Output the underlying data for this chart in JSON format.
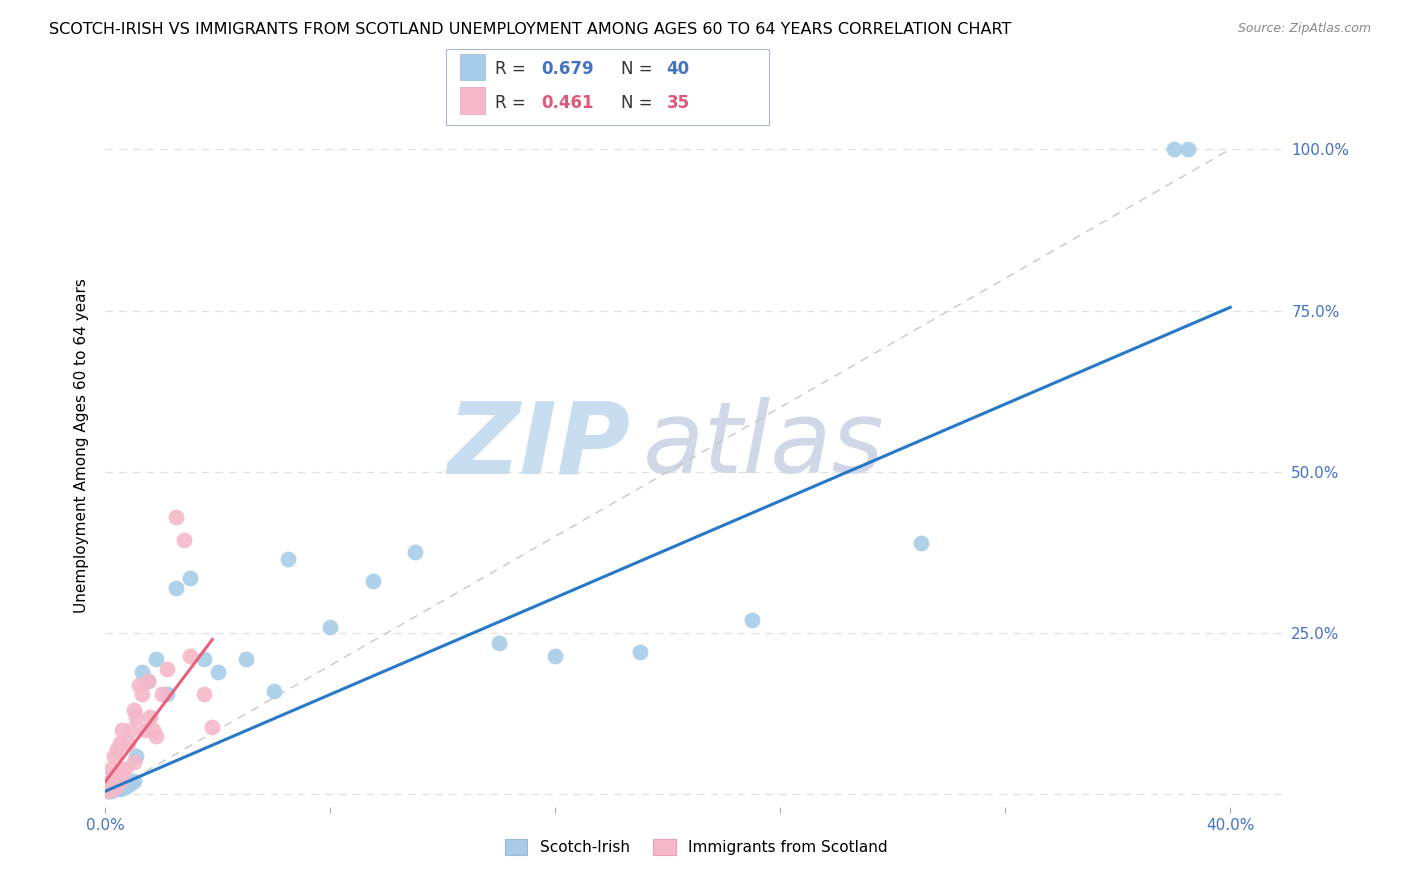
{
  "title": "SCOTCH-IRISH VS IMMIGRANTS FROM SCOTLAND UNEMPLOYMENT AMONG AGES 60 TO 64 YEARS CORRELATION CHART",
  "source": "Source: ZipAtlas.com",
  "ylabel": "Unemployment Among Ages 60 to 64 years",
  "xlim": [
    0.0,
    0.42
  ],
  "ylim": [
    -0.02,
    1.1
  ],
  "ytick_positions": [
    0.0,
    0.25,
    0.5,
    0.75,
    1.0
  ],
  "ytick_labels": [
    "",
    "25.0%",
    "50.0%",
    "75.0%",
    "100.0%"
  ],
  "blue_color": "#a8cce8",
  "pink_color": "#f5b8c8",
  "blue_line_color": "#2878c8",
  "pink_line_color": "#e8607a",
  "ref_line_color": "#c8c8c8",
  "watermark_zip_color": "#c8ddf0",
  "watermark_atlas_color": "#d0d8e8",
  "grid_color": "#e0e0e0",
  "background_color": "#ffffff",
  "title_fontsize": 11.5,
  "axis_label_fontsize": 11,
  "tick_fontsize": 11,
  "scotch_irish_x": [
    0.001,
    0.001,
    0.001,
    0.002,
    0.002,
    0.002,
    0.003,
    0.003,
    0.003,
    0.004,
    0.004,
    0.005,
    0.005,
    0.006,
    0.007,
    0.008,
    0.009,
    0.01,
    0.011,
    0.013,
    0.015,
    0.018,
    0.022,
    0.025,
    0.03,
    0.035,
    0.04,
    0.05,
    0.06,
    0.065,
    0.08,
    0.095,
    0.11,
    0.14,
    0.16,
    0.19,
    0.23,
    0.29,
    0.38,
    0.385
  ],
  "scotch_irish_y": [
    0.005,
    0.01,
    0.015,
    0.005,
    0.01,
    0.02,
    0.008,
    0.012,
    0.018,
    0.01,
    0.015,
    0.008,
    0.015,
    0.01,
    0.012,
    0.015,
    0.018,
    0.02,
    0.06,
    0.19,
    0.175,
    0.21,
    0.155,
    0.32,
    0.335,
    0.21,
    0.19,
    0.21,
    0.16,
    0.365,
    0.26,
    0.33,
    0.375,
    0.235,
    0.215,
    0.22,
    0.27,
    0.39,
    1.0,
    1.0
  ],
  "immigrants_x": [
    0.001,
    0.001,
    0.002,
    0.002,
    0.002,
    0.003,
    0.003,
    0.003,
    0.004,
    0.004,
    0.004,
    0.005,
    0.005,
    0.006,
    0.006,
    0.007,
    0.008,
    0.009,
    0.01,
    0.01,
    0.011,
    0.012,
    0.013,
    0.014,
    0.015,
    0.016,
    0.017,
    0.018,
    0.02,
    0.022,
    0.025,
    0.028,
    0.03,
    0.035,
    0.038
  ],
  "immigrants_y": [
    0.005,
    0.015,
    0.008,
    0.02,
    0.04,
    0.01,
    0.03,
    0.06,
    0.015,
    0.025,
    0.07,
    0.02,
    0.08,
    0.03,
    0.1,
    0.04,
    0.08,
    0.1,
    0.05,
    0.13,
    0.12,
    0.17,
    0.155,
    0.1,
    0.175,
    0.12,
    0.1,
    0.09,
    0.155,
    0.195,
    0.43,
    0.395,
    0.215,
    0.155,
    0.105
  ],
  "blue_line_x": [
    0.0,
    0.4
  ],
  "blue_line_y": [
    0.005,
    0.755
  ],
  "pink_line_x": [
    0.0,
    0.038
  ],
  "pink_line_y": [
    0.02,
    0.24
  ]
}
